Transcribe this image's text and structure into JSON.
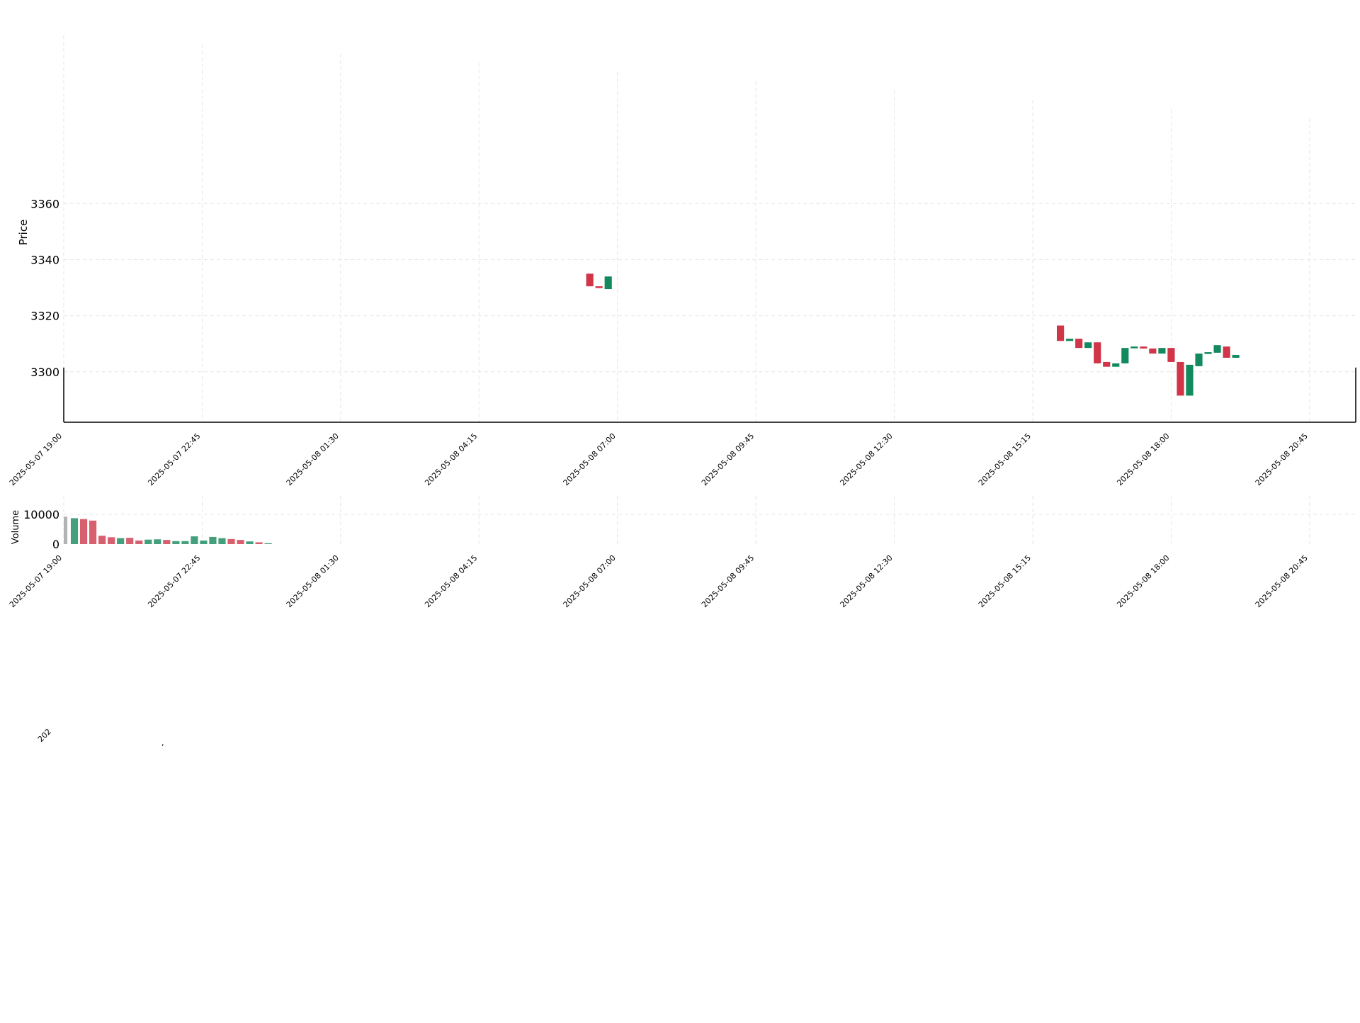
{
  "chart_data": [
    {
      "type": "candlestick",
      "panel": "price",
      "ylabel": "Price",
      "ylim": [
        3282,
        3420
      ],
      "yticks": [
        3300,
        3320,
        3340,
        3360
      ],
      "xlim": [
        0,
        140
      ],
      "grid": true,
      "xtick_positions": [
        0,
        15,
        30,
        45,
        60,
        75,
        90,
        105,
        120,
        135
      ],
      "xtick_labels": [
        "2025-05-07 19:00",
        "2025-05-07 22:45",
        "2025-05-08 01:30",
        "2025-05-08 04:15",
        "2025-05-08 07:00",
        "2025-05-08 09:45",
        "2025-05-08 12:30",
        "2025-05-08 15:15",
        "2025-05-08 18:00",
        "2025-05-08 20:45"
      ],
      "candles": [
        {
          "i": 57,
          "open": 3335,
          "close": 3330.5,
          "high": 3335,
          "low": 3330.5
        },
        {
          "i": 58,
          "open": 3330.5,
          "close": 3330,
          "high": 3330.5,
          "low": 3330
        },
        {
          "i": 59,
          "open": 3329.5,
          "close": 3334,
          "high": 3334,
          "low": 3329.5
        },
        {
          "i": 108,
          "open": 3316.5,
          "close": 3311,
          "high": 3316.5,
          "low": 3311
        },
        {
          "i": 109,
          "open": 3311,
          "close": 3311.8,
          "high": 3311.8,
          "low": 3311
        },
        {
          "i": 110,
          "open": 3311.8,
          "close": 3308.5,
          "high": 3311.8,
          "low": 3308.5
        },
        {
          "i": 111,
          "open": 3308.5,
          "close": 3310.5,
          "high": 3310.5,
          "low": 3308.5
        },
        {
          "i": 112,
          "open": 3310.5,
          "close": 3303,
          "high": 3310.5,
          "low": 3303
        },
        {
          "i": 113,
          "open": 3303.5,
          "close": 3301.8,
          "high": 3303.5,
          "low": 3301.8
        },
        {
          "i": 114,
          "open": 3301.8,
          "close": 3303,
          "high": 3303,
          "low": 3301.8
        },
        {
          "i": 115,
          "open": 3303,
          "close": 3308.5,
          "high": 3308.5,
          "low": 3303
        },
        {
          "i": 116,
          "open": 3308.5,
          "close": 3309,
          "high": 3309,
          "low": 3308.5
        },
        {
          "i": 117,
          "open": 3309,
          "close": 3308.3,
          "high": 3309,
          "low": 3308.3
        },
        {
          "i": 118,
          "open": 3308.3,
          "close": 3306.5,
          "high": 3308.3,
          "low": 3306.5
        },
        {
          "i": 119,
          "open": 3306.5,
          "close": 3308.5,
          "high": 3308.5,
          "low": 3306.5
        },
        {
          "i": 120,
          "open": 3308.5,
          "close": 3303.5,
          "high": 3308.5,
          "low": 3303.5
        },
        {
          "i": 121,
          "open": 3303.5,
          "close": 3291.5,
          "high": 3303.5,
          "low": 3291.5
        },
        {
          "i": 122,
          "open": 3291.5,
          "close": 3302.5,
          "high": 3302.5,
          "low": 3291.5
        },
        {
          "i": 123,
          "open": 3302,
          "close": 3306.5,
          "high": 3306.5,
          "low": 3302
        },
        {
          "i": 124,
          "open": 3306.5,
          "close": 3307,
          "high": 3307,
          "low": 3306.5
        },
        {
          "i": 125,
          "open": 3306.8,
          "close": 3309.5,
          "high": 3309.5,
          "low": 3306.8
        },
        {
          "i": 126,
          "open": 3309,
          "close": 3305,
          "high": 3309,
          "low": 3305
        },
        {
          "i": 127,
          "open": 3305,
          "close": 3306,
          "high": 3306,
          "low": 3305
        }
      ]
    },
    {
      "type": "bar",
      "panel": "volume",
      "ylabel": "Volume",
      "ylim": [
        0,
        20000
      ],
      "yticks": [
        0,
        10000
      ],
      "xlim": [
        0,
        140
      ],
      "grid": true,
      "xtick_positions": [
        0,
        15,
        30,
        45,
        60,
        75,
        90,
        105,
        120,
        135
      ],
      "xtick_labels": [
        "2025-05-07 19:00",
        "2025-05-07 22:45",
        "2025-05-08 01:30",
        "2025-05-08 04:15",
        "2025-05-08 07:00",
        "2025-05-08 09:45",
        "2025-05-08 12:30",
        "2025-05-08 15:15",
        "2025-05-08 18:00",
        "2025-05-08 20:45"
      ],
      "bars": [
        {
          "i": 0,
          "value": 9200,
          "direction": "neutral"
        },
        {
          "i": 1,
          "value": 8700,
          "direction": "up"
        },
        {
          "i": 2,
          "value": 8400,
          "direction": "down"
        },
        {
          "i": 3,
          "value": 7900,
          "direction": "down"
        },
        {
          "i": 4,
          "value": 2800,
          "direction": "down"
        },
        {
          "i": 5,
          "value": 2300,
          "direction": "down"
        },
        {
          "i": 6,
          "value": 2000,
          "direction": "up"
        },
        {
          "i": 7,
          "value": 2100,
          "direction": "down"
        },
        {
          "i": 8,
          "value": 1200,
          "direction": "down"
        },
        {
          "i": 9,
          "value": 1500,
          "direction": "up"
        },
        {
          "i": 10,
          "value": 1600,
          "direction": "up"
        },
        {
          "i": 11,
          "value": 1400,
          "direction": "down"
        },
        {
          "i": 12,
          "value": 1000,
          "direction": "up"
        },
        {
          "i": 13,
          "value": 1000,
          "direction": "up"
        },
        {
          "i": 14,
          "value": 2600,
          "direction": "up"
        },
        {
          "i": 15,
          "value": 1200,
          "direction": "up"
        },
        {
          "i": 16,
          "value": 2400,
          "direction": "up"
        },
        {
          "i": 17,
          "value": 2000,
          "direction": "up"
        },
        {
          "i": 18,
          "value": 1700,
          "direction": "down"
        },
        {
          "i": 19,
          "value": 1400,
          "direction": "down"
        },
        {
          "i": 20,
          "value": 900,
          "direction": "up"
        },
        {
          "i": 21,
          "value": 600,
          "direction": "down"
        },
        {
          "i": 22,
          "value": 300,
          "direction": "up"
        }
      ]
    }
  ],
  "colors": {
    "up": "#128a5e",
    "down": "#d03548",
    "volume_up": "#44a07c",
    "volume_down": "#d85f6e",
    "volume_neutral": "#b3b3b3",
    "grid": "#e6e6e6",
    "axis": "#000000",
    "text": "#000000"
  }
}
